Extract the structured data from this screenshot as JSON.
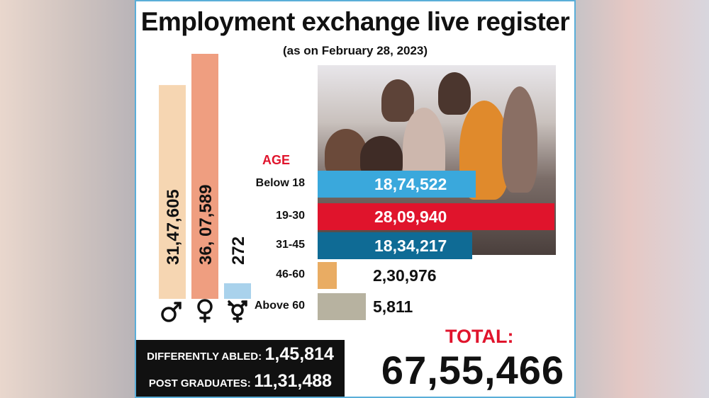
{
  "header": {
    "title": "Employment exchange live register",
    "subtitle": "(as on February 28, 2023)"
  },
  "colors": {
    "male": "#f6d6b2",
    "female": "#ef9e80",
    "transgender": "#a9d2ec",
    "accent_red": "#e0142c"
  },
  "chart_data": [
    {
      "type": "bar",
      "orientation": "vertical",
      "categories": [
        "male-icon",
        "female-icon",
        "transgender-icon"
      ],
      "values": [
        3147605,
        3607589,
        272
      ],
      "value_labels": [
        "31,47,605",
        "36, 07,589",
        "272"
      ],
      "ylim": [
        0,
        3607589
      ]
    },
    {
      "type": "bar",
      "orientation": "horizontal",
      "title": "AGE",
      "categories": [
        "Below 18",
        "19-30",
        "31-45",
        "46-60",
        "Above 60"
      ],
      "values": [
        1874522,
        2809940,
        1834217,
        230976,
        5811
      ],
      "value_labels": [
        "18,74,522",
        "28,09,940",
        "18,34,217",
        "2,30,976",
        "5,811"
      ],
      "colors": [
        "#3aa8dc",
        "#e0142c",
        "#0f6b95",
        "#e9ac63",
        "#b7b2a0"
      ]
    }
  ],
  "summary": {
    "differently_abled_label": "DIFFERENTLY ABLED:",
    "differently_abled_value": "1,45,814",
    "post_graduates_label": "POST GRADUATES:",
    "post_graduates_value": "11,31,488",
    "total_label": "TOTAL:",
    "total_value": "67,55,466"
  }
}
